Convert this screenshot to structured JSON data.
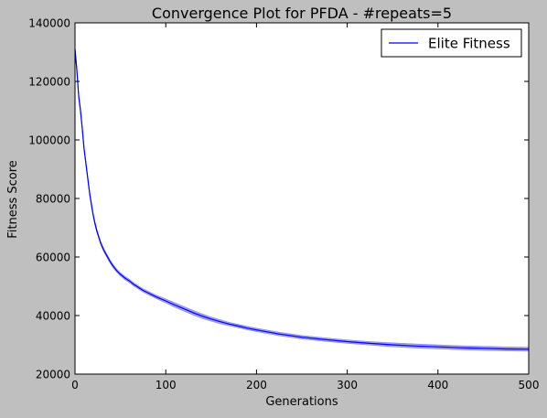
{
  "chart_data": {
    "type": "line",
    "title": "Convergence Plot for PFDA - #repeats=5",
    "xlabel": "Generations",
    "ylabel": "Fitness Score",
    "xlim": [
      0,
      500
    ],
    "ylim": [
      20000,
      140000
    ],
    "xticks": [
      0,
      100,
      200,
      300,
      400,
      500
    ],
    "yticks": [
      20000,
      40000,
      60000,
      80000,
      100000,
      120000,
      140000
    ],
    "xtick_labels": [
      "0",
      "100",
      "200",
      "300",
      "400",
      "500"
    ],
    "ytick_labels": [
      "20000",
      "40000",
      "60000",
      "80000",
      "100000",
      "120000",
      "140000"
    ],
    "grid": false,
    "legend_position": "top-right",
    "series": [
      {
        "name": "Elite Fitness",
        "color": "#0000ff",
        "band_color": "#8080e8",
        "x": [
          0,
          2,
          4,
          6,
          8,
          10,
          12,
          14,
          16,
          18,
          20,
          22,
          24,
          26,
          28,
          30,
          32,
          35,
          38,
          41,
          44,
          47,
          50,
          55,
          60,
          65,
          70,
          75,
          80,
          90,
          100,
          110,
          120,
          130,
          140,
          150,
          160,
          170,
          180,
          190,
          200,
          225,
          250,
          275,
          300,
          325,
          350,
          375,
          400,
          425,
          450,
          475,
          500
        ],
        "y": [
          131000,
          124000,
          115000,
          110000,
          104000,
          97000,
          92000,
          87000,
          82000,
          78000,
          74500,
          71500,
          69000,
          67000,
          65000,
          63500,
          62200,
          60500,
          58800,
          57300,
          56100,
          55000,
          54100,
          52800,
          51800,
          50600,
          49600,
          48600,
          47800,
          46300,
          45000,
          43600,
          42300,
          41000,
          39800,
          38800,
          37900,
          37100,
          36400,
          35700,
          35100,
          33700,
          32600,
          31800,
          31100,
          30500,
          30000,
          29600,
          29300,
          29000,
          28800,
          28600,
          28500
        ],
        "band_halfwidth": [
          1200,
          1100,
          1000,
          900,
          900,
          900,
          800,
          800,
          800,
          700,
          700,
          700,
          700,
          600,
          600,
          600,
          600,
          600,
          600,
          600,
          600,
          600,
          600,
          600,
          600,
          600,
          600,
          600,
          600,
          600,
          700,
          800,
          800,
          800,
          800,
          700,
          700,
          600,
          600,
          600,
          600,
          600,
          600,
          600,
          600,
          600,
          700,
          700,
          700,
          700,
          700,
          700,
          700
        ]
      }
    ]
  }
}
